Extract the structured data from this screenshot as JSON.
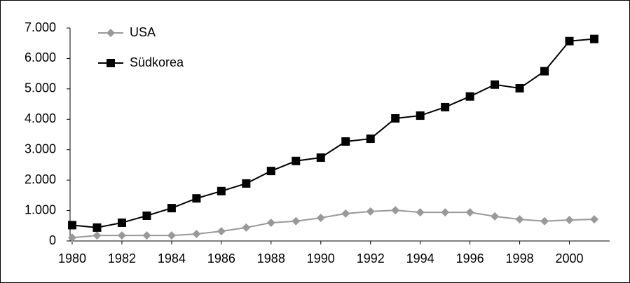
{
  "chart_data": {
    "type": "line",
    "x": [
      1980,
      1981,
      1982,
      1983,
      1984,
      1985,
      1986,
      1987,
      1988,
      1989,
      1990,
      1991,
      1992,
      1993,
      1994,
      1995,
      1996,
      1997,
      1998,
      1999,
      2000,
      2001
    ],
    "series": [
      {
        "name": "USA",
        "color": "#999999",
        "marker": "diamond",
        "values": [
          110,
          180,
          180,
          180,
          180,
          230,
          320,
          440,
          600,
          650,
          760,
          900,
          970,
          1010,
          940,
          940,
          940,
          810,
          710,
          650,
          690,
          710
        ]
      },
      {
        "name": "Südkorea",
        "color": "#000000",
        "marker": "square",
        "values": [
          520,
          440,
          600,
          830,
          1080,
          1400,
          1640,
          1890,
          2300,
          2630,
          2740,
          3270,
          3360,
          4030,
          4120,
          4400,
          4750,
          5140,
          5020,
          5580,
          6570,
          6640
        ]
      }
    ],
    "xlim": [
      1980,
      2001
    ],
    "xticks": [
      1980,
      1982,
      1984,
      1986,
      1988,
      1990,
      1992,
      1994,
      1996,
      1998,
      2000
    ],
    "ylim": [
      0,
      7000
    ],
    "yticks": [
      0,
      {
        "value": 1000,
        "label": "1.000"
      },
      {
        "value": 2000,
        "label": "2.000"
      },
      {
        "value": 3000,
        "label": "3.000"
      },
      {
        "value": 4000,
        "label": "4.000"
      },
      {
        "value": 5000,
        "label": "5.000"
      },
      {
        "value": 6000,
        "label": "6.000"
      },
      {
        "value": 7000,
        "label": "7.000"
      }
    ],
    "legend": "top-left",
    "grid": false
  }
}
